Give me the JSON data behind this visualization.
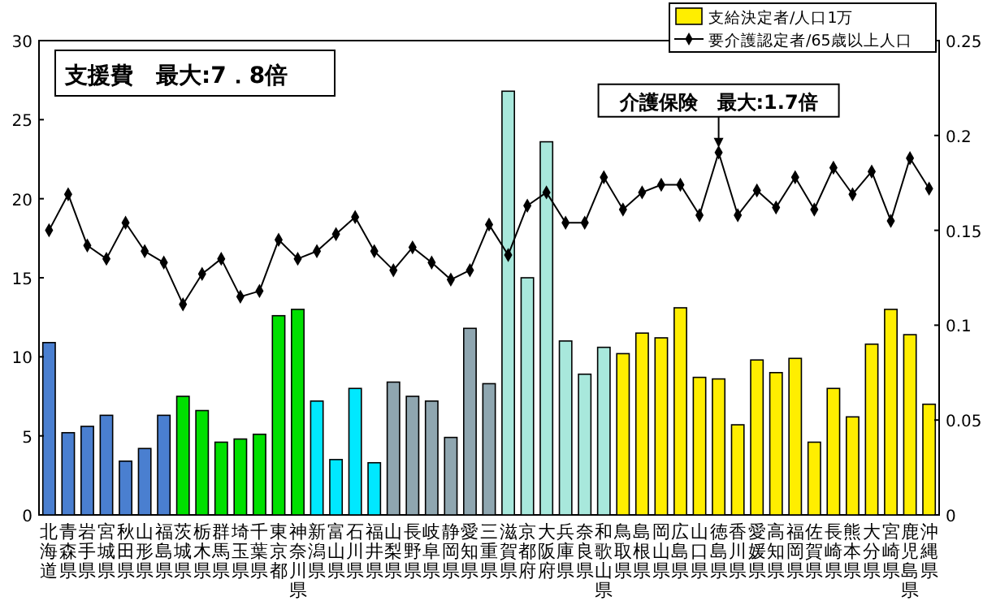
{
  "chart_data": {
    "type": "bar",
    "categories": [
      "北海道",
      "青森県",
      "岩手県",
      "宮城県",
      "秋田県",
      "山形県",
      "福島県",
      "茨城県",
      "栃木県",
      "群馬県",
      "埼玉県",
      "千葉県",
      "東京都",
      "神奈川県",
      "新潟県",
      "富山県",
      "石川県",
      "福井県",
      "山梨県",
      "長野県",
      "岐阜県",
      "静岡県",
      "愛知県",
      "三重県",
      "滋賀県",
      "京都府",
      "大阪府",
      "兵庫県",
      "奈良県",
      "和歌山県",
      "鳥取県",
      "島根県",
      "岡山県",
      "広島県",
      "山口県",
      "徳島県",
      "香川県",
      "愛媛県",
      "高知県",
      "福岡県",
      "佐賀県",
      "長崎県",
      "熊本県",
      "大分県",
      "宮崎県",
      "鹿児島県",
      "沖縄県"
    ],
    "series": [
      {
        "name": "支給決定者/人口1万",
        "color": "#ffee00",
        "colors": [
          "#4a7fd0",
          "#4a7fd0",
          "#4a7fd0",
          "#4a7fd0",
          "#4a7fd0",
          "#4a7fd0",
          "#4a7fd0",
          "#00e000",
          "#00e000",
          "#00e000",
          "#00e000",
          "#00e000",
          "#00e000",
          "#00e000",
          "#00e8ff",
          "#00e8ff",
          "#00e8ff",
          "#00e8ff",
          "#8fa6b0",
          "#8fa6b0",
          "#8fa6b0",
          "#8fa6b0",
          "#8fa6b0",
          "#8fa6b0",
          "#a8e8dc",
          "#a8e8dc",
          "#a8e8dc",
          "#a8e8dc",
          "#a8e8dc",
          "#a8e8dc",
          "#ffee00",
          "#ffee00",
          "#ffee00",
          "#ffee00",
          "#ffee00",
          "#ffee00",
          "#ffee00",
          "#ffee00",
          "#ffee00",
          "#ffee00",
          "#ffee00",
          "#ffee00",
          "#ffee00",
          "#ffee00",
          "#ffee00",
          "#ffee00",
          "#ffee00"
        ],
        "values": [
          10.9,
          5.2,
          5.6,
          6.3,
          3.4,
          4.2,
          6.3,
          7.5,
          6.6,
          4.6,
          4.8,
          5.1,
          12.6,
          13.0,
          7.2,
          3.5,
          8.0,
          3.3,
          8.4,
          7.5,
          7.2,
          4.9,
          11.8,
          8.3,
          26.8,
          15.0,
          23.6,
          11.0,
          8.9,
          10.6,
          10.2,
          11.5,
          11.2,
          13.1,
          8.7,
          8.6,
          5.7,
          9.8,
          9.0,
          9.9,
          4.6,
          8.0,
          6.2,
          10.8,
          13.0,
          11.4,
          7.0
        ]
      },
      {
        "name": "要介護認定者/65歳以上人口",
        "type": "line",
        "axis": "y2",
        "color": "#000000",
        "marker": "diamond",
        "values": [
          0.15,
          0.169,
          0.142,
          0.135,
          0.154,
          0.139,
          0.133,
          0.111,
          0.127,
          0.135,
          0.115,
          0.118,
          0.145,
          0.135,
          0.139,
          0.148,
          0.157,
          0.139,
          0.129,
          0.141,
          0.133,
          0.124,
          0.129,
          0.153,
          0.137,
          0.163,
          0.17,
          0.154,
          0.154,
          0.178,
          0.161,
          0.17,
          0.174,
          0.174,
          0.158,
          0.191,
          0.158,
          0.171,
          0.162,
          0.178,
          0.161,
          0.183,
          0.169,
          0.181,
          0.155,
          0.188,
          0.172
        ]
      }
    ],
    "ylim": [
      0,
      30
    ],
    "yticks": [
      0,
      5,
      10,
      15,
      20,
      25,
      30
    ],
    "y2lim": [
      0,
      0.25
    ],
    "y2ticks": [
      0,
      0.05,
      0.1,
      0.15,
      0.2,
      0.25
    ],
    "legend": "top right",
    "grid": false,
    "annotations": [
      "支援費　最大:7．8倍",
      "介護保険　最大:1.7倍"
    ]
  }
}
